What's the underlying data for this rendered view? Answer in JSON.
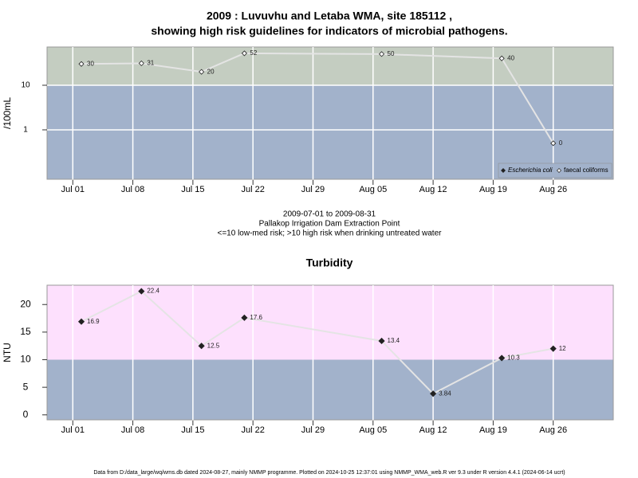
{
  "title": [
    "2009 : Luvuvhu and Letaba WMA, site 185112 ,",
    "showing high risk guidelines for indicators of microbial pathogens."
  ],
  "footer": "Data from D:/data_large/wq/wms.db dated 2024-08-27, mainly NMMP programme. Plotted on 2024-10-25 12:37:01 using NMMP_WMA_web.R ver 9.3 under R version 4.4.1 (2024-06-14 ucrt)",
  "chart_data": [
    {
      "type": "line",
      "y_label": "/100mL",
      "log_scale": true,
      "grid": true,
      "legend": "bottom-right",
      "notes": [
        "2009-07-01 to 2009-08-31",
        "Pallakop Irrigation Dam Extraction Point",
        "<=10 low-med risk; >10 high risk when drinking untreated water"
      ],
      "threshold": 10,
      "band_colors": {
        "above": "#c4cdc1",
        "below": "#a2b2cb"
      },
      "x": [
        "2009-07-02",
        "2009-07-09",
        "2009-07-16",
        "2009-07-21",
        "2009-08-06",
        "2009-08-20",
        "2009-08-26"
      ],
      "series": [
        {
          "name": "Escherichia coli",
          "color": "#222222",
          "marker": "filled-diamond",
          "values": [
            null,
            null,
            null,
            null,
            null,
            null,
            null
          ]
        },
        {
          "name": "faecal coliforms",
          "color": "#ffffff",
          "marker": "open-diamond",
          "values": [
            30,
            31,
            20,
            52,
            50,
            40,
            0.5
          ],
          "value_labels": [
            "30",
            "31",
            "20",
            "52",
            "50",
            "40",
            "0"
          ]
        }
      ],
      "xlim": [
        "2009-06-28",
        "2009-09-02"
      ],
      "xticks": [
        {
          "value": "2009-07-01",
          "label": "Jul 01"
        },
        {
          "value": "2009-07-08",
          "label": "Jul 08"
        },
        {
          "value": "2009-07-15",
          "label": "Jul 15"
        },
        {
          "value": "2009-07-22",
          "label": "Jul 22"
        },
        {
          "value": "2009-07-29",
          "label": "Jul 29"
        },
        {
          "value": "2009-08-05",
          "label": "Aug 05"
        },
        {
          "value": "2009-08-12",
          "label": "Aug 12"
        },
        {
          "value": "2009-08-19",
          "label": "Aug 19"
        },
        {
          "value": "2009-08-26",
          "label": "Aug 26"
        }
      ],
      "ylim": [
        0.078,
        72
      ],
      "yticks": [
        1,
        10
      ]
    },
    {
      "type": "line",
      "title": "Turbidity",
      "y_label": "NTU",
      "log_scale": false,
      "grid": true,
      "threshold": 10,
      "band_colors": {
        "above": "#fde0fd",
        "below": "#a2b2cb"
      },
      "x": [
        "2009-07-02",
        "2009-07-09",
        "2009-07-16",
        "2009-07-21",
        "2009-08-06",
        "2009-08-12",
        "2009-08-20",
        "2009-08-26"
      ],
      "series": [
        {
          "name": "Turbidity",
          "color": "#222222",
          "marker": "filled-diamond",
          "values": [
            16.9,
            22.4,
            12.5,
            17.6,
            13.4,
            3.84,
            10.3,
            12
          ]
        }
      ],
      "xlim": [
        "2009-06-28",
        "2009-09-02"
      ],
      "xticks": [
        {
          "value": "2009-07-01",
          "label": "Jul 01"
        },
        {
          "value": "2009-07-08",
          "label": "Jul 08"
        },
        {
          "value": "2009-07-15",
          "label": "Jul 15"
        },
        {
          "value": "2009-07-22",
          "label": "Jul 22"
        },
        {
          "value": "2009-07-29",
          "label": "Jul 29"
        },
        {
          "value": "2009-08-05",
          "label": "Aug 05"
        },
        {
          "value": "2009-08-12",
          "label": "Aug 12"
        },
        {
          "value": "2009-08-19",
          "label": "Aug 19"
        },
        {
          "value": "2009-08-26",
          "label": "Aug 26"
        }
      ],
      "ylim": [
        -0.9,
        23.5
      ],
      "yticks": [
        0,
        5,
        10,
        15,
        20
      ]
    }
  ]
}
